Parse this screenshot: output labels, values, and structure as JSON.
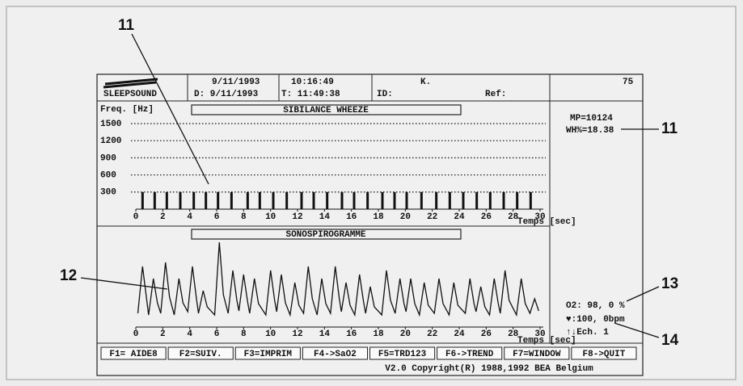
{
  "header": {
    "logo": "SLEEPSOUND",
    "date": "9/11/1993",
    "date_d": "D: 9/11/1993",
    "time_start": "10:16:49",
    "time_t": "T: 11:49:38",
    "id": "ID:",
    "k": "K.",
    "ref": "Ref:",
    "number": "75"
  },
  "sibilance": {
    "title": "SIBILANCE WHEEZE",
    "y_label": "Freq. [Hz]",
    "x_label": "Temps [sec]",
    "ylim": [
      0,
      1600
    ],
    "yticks": [
      300,
      600,
      900,
      1200,
      1500
    ],
    "xlim": [
      0,
      30
    ],
    "xticks": [
      0,
      2,
      4,
      6,
      8,
      10,
      12,
      14,
      16,
      18,
      20,
      22,
      24,
      26,
      28,
      30
    ],
    "x": [
      0.5,
      1.4,
      2.3,
      3.3,
      4.3,
      5.2,
      6.1,
      7.1,
      8.3,
      9.2,
      10.2,
      11.2,
      12.3,
      13.2,
      14.2,
      15.3,
      16.2,
      17.2,
      18.3,
      19.2,
      20.1,
      21.2,
      22.3,
      23.3,
      24.3,
      25.3,
      26.3,
      27.3,
      28.3,
      29.3
    ],
    "values": [
      300,
      300,
      300,
      300,
      300,
      300,
      300,
      300,
      300,
      300,
      300,
      300,
      300,
      300,
      300,
      300,
      300,
      300,
      300,
      300,
      300,
      300,
      300,
      300,
      300,
      300,
      300,
      300,
      300,
      300
    ]
  },
  "sono": {
    "title": "SONOSPIROGRAMME",
    "x_label": "Temps [sec]",
    "xlim": [
      0,
      30
    ],
    "xticks": [
      0,
      2,
      4,
      6,
      8,
      10,
      12,
      14,
      16,
      18,
      20,
      22,
      24,
      26,
      28,
      30
    ],
    "ylim": [
      0,
      100
    ],
    "x": [
      0.15,
      0.5,
      0.8,
      0.95,
      1.3,
      1.6,
      1.85,
      2.2,
      2.5,
      2.85,
      3.2,
      3.5,
      3.85,
      4.2,
      4.5,
      4.65,
      5.0,
      5.3,
      5.85,
      6.2,
      6.5,
      6.85,
      7.2,
      7.5,
      7.65,
      8.0,
      8.3,
      8.45,
      8.8,
      9.1,
      9.65,
      10.0,
      10.3,
      10.45,
      10.8,
      11.1,
      11.45,
      11.8,
      12.1,
      12.45,
      12.8,
      13.1,
      13.45,
      13.8,
      14.1,
      14.45,
      14.8,
      15.1,
      15.25,
      15.6,
      15.9,
      16.25,
      16.6,
      16.9,
      17.05,
      17.4,
      17.7,
      18.25,
      18.6,
      18.9,
      19.25,
      19.6,
      19.9,
      20.05,
      20.4,
      20.7,
      21.05,
      21.4,
      21.7,
      22.15,
      22.5,
      22.8,
      23.25,
      23.6,
      23.9,
      24.45,
      24.8,
      25.1,
      25.25,
      25.6,
      25.9,
      26.25,
      26.6,
      26.9,
      27.05,
      27.4,
      27.7,
      28.25,
      28.6,
      28.9,
      29.25,
      29.6,
      29.9
    ],
    "values": [
      12,
      70,
      30,
      10,
      55,
      25,
      12,
      75,
      32,
      10,
      55,
      25,
      14,
      70,
      30,
      12,
      40,
      20,
      10,
      100,
      35,
      12,
      65,
      28,
      15,
      60,
      26,
      12,
      55,
      24,
      10,
      65,
      28,
      14,
      60,
      25,
      10,
      50,
      22,
      12,
      70,
      30,
      10,
      55,
      24,
      12,
      70,
      30,
      14,
      50,
      22,
      10,
      60,
      26,
      12,
      45,
      20,
      10,
      65,
      28,
      12,
      55,
      24,
      14,
      55,
      24,
      10,
      50,
      22,
      12,
      55,
      24,
      10,
      50,
      22,
      12,
      55,
      24,
      14,
      45,
      20,
      10,
      55,
      24,
      12,
      65,
      28,
      10,
      55,
      24,
      12,
      30,
      15
    ]
  },
  "right_panel": {
    "mp": "MP=10124",
    "wh": "WH%=18.38",
    "o2": "O2: 98,  0 %",
    "heart": "♥:100,  0bpm",
    "ech": "↑↓Ech. 1"
  },
  "function_keys": [
    "F1= AIDE8",
    "F2=SUIV.",
    "F3=IMPRIM",
    "F4->SaO2",
    "F5=TRD123",
    "F6->TREND",
    "F7=WINDOW",
    "F8->QUIT"
  ],
  "copyright": "V2.0 Copyright(R) 1988,1992 BEA Belgium",
  "callouts": [
    "11",
    "11",
    "12",
    "13",
    "14"
  ]
}
